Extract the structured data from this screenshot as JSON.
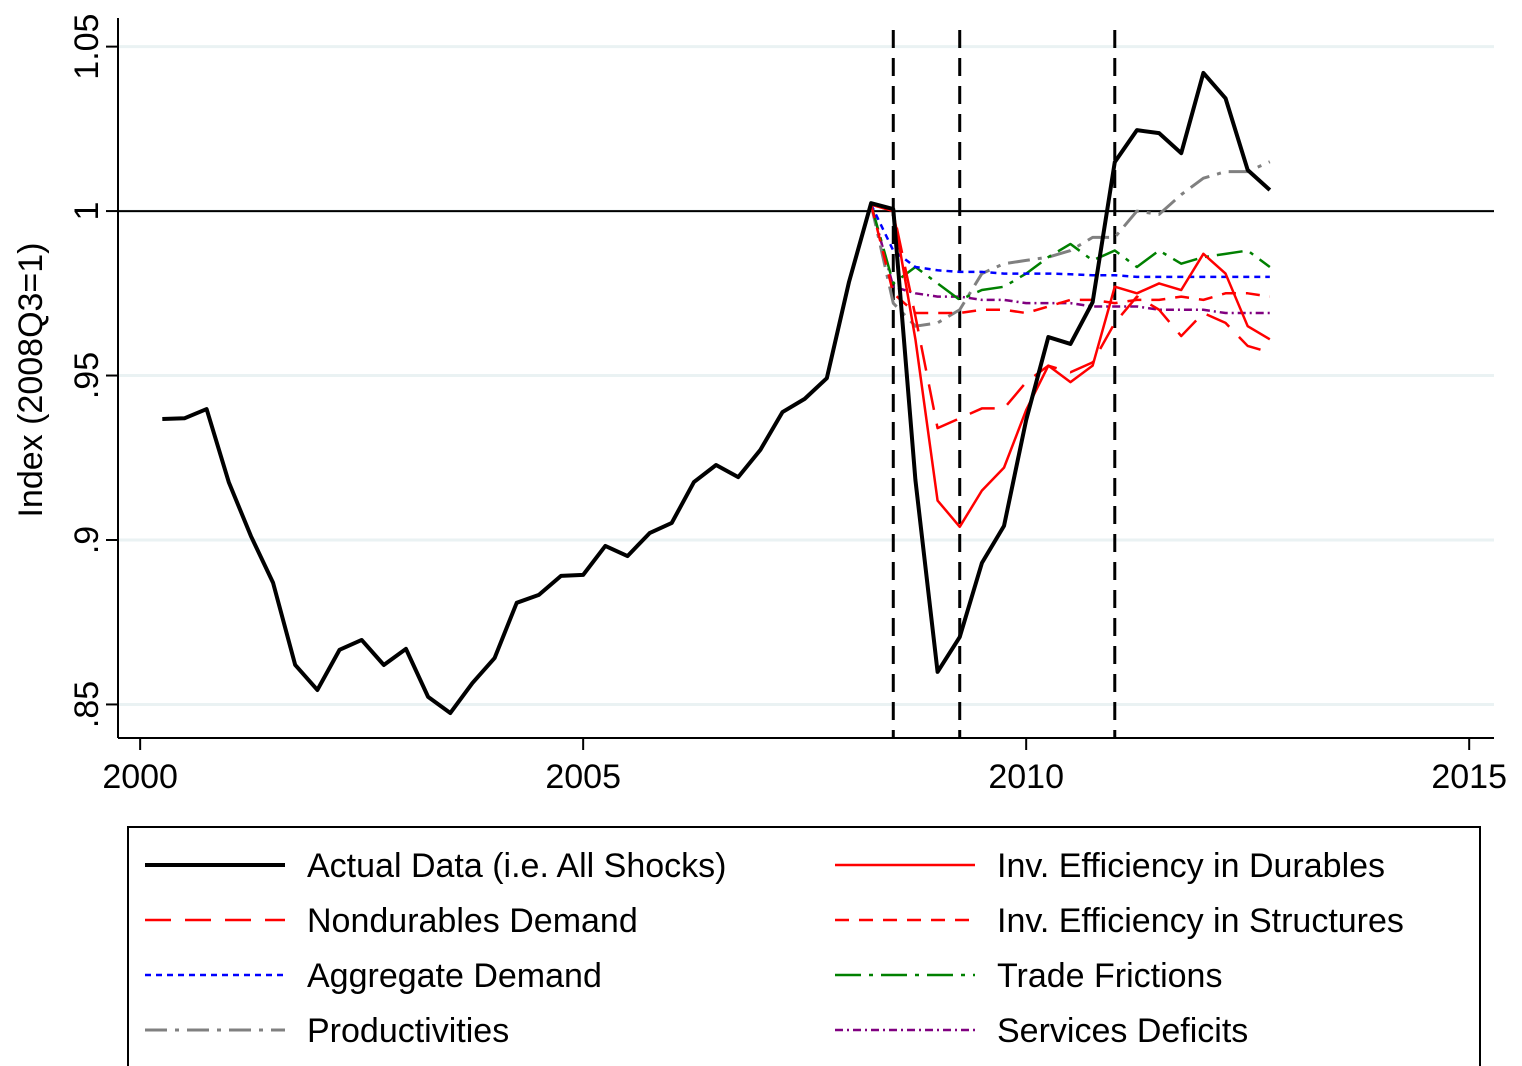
{
  "chart_data": {
    "type": "line",
    "ylabel": "Index (2008Q3=1)",
    "x": [
      2000.25,
      2000.5,
      2000.75,
      2001,
      2001.25,
      2001.5,
      2001.75,
      2002,
      2002.25,
      2002.5,
      2002.75,
      2003,
      2003.25,
      2003.5,
      2003.75,
      2004,
      2004.25,
      2004.5,
      2004.75,
      2005,
      2005.25,
      2005.5,
      2005.75,
      2006,
      2006.25,
      2006.5,
      2006.75,
      2007,
      2007.25,
      2007.5,
      2007.75,
      2008,
      2008.25,
      2008.5,
      2008.75,
      2009,
      2009.25,
      2009.5,
      2009.75,
      2010,
      2010.25,
      2010.5,
      2010.75,
      2011,
      2011.25,
      2011.5,
      2011.75,
      2012,
      2012.25,
      2012.5,
      2012.75
    ],
    "series": [
      {
        "name": "Actual Data (i.e. All Shocks)",
        "color": "#000000",
        "dash": "none",
        "width": 4,
        "values": [
          0.9368,
          0.937,
          0.9398,
          0.9176,
          0.9012,
          0.887,
          0.862,
          0.8544,
          0.8666,
          0.8696,
          0.862,
          0.8669,
          0.8523,
          0.8474,
          0.8565,
          0.8641,
          0.8809,
          0.8833,
          0.8891,
          0.8894,
          0.8982,
          0.8951,
          0.9021,
          0.9052,
          0.9176,
          0.9228,
          0.9191,
          0.9274,
          0.9389,
          0.9429,
          0.9492,
          0.9784,
          1.0024,
          1.0006,
          0.9182,
          0.8599,
          0.8705,
          0.893,
          0.9043,
          0.9365,
          0.9617,
          0.9596,
          0.9723,
          1.0149,
          1.0246,
          1.0237,
          1.0176,
          1.042,
          1.0343,
          1.0125,
          1.0064
        ]
      },
      {
        "name": "Inv. Efficiency in Durables",
        "color": "#ff0000",
        "dash": "none",
        "width": 2.5,
        "values": [
          null,
          null,
          null,
          null,
          null,
          null,
          null,
          null,
          null,
          null,
          null,
          null,
          null,
          null,
          null,
          null,
          null,
          null,
          null,
          null,
          null,
          null,
          null,
          null,
          null,
          null,
          null,
          null,
          null,
          null,
          null,
          null,
          1.002,
          1.0,
          0.961,
          0.912,
          0.904,
          0.915,
          0.922,
          0.9395,
          0.953,
          0.948,
          0.953,
          0.977,
          0.975,
          0.978,
          0.976,
          0.987,
          0.981,
          0.965,
          0.961
        ]
      },
      {
        "name": "Nondurables Demand",
        "color": "#ff0000",
        "dash": "26 14",
        "width": 2.5,
        "values": [
          null,
          null,
          null,
          null,
          null,
          null,
          null,
          null,
          null,
          null,
          null,
          null,
          null,
          null,
          null,
          null,
          null,
          null,
          null,
          null,
          null,
          null,
          null,
          null,
          null,
          null,
          null,
          null,
          null,
          null,
          null,
          null,
          1.002,
          1.0,
          0.968,
          0.934,
          0.937,
          0.94,
          0.94,
          0.948,
          0.953,
          0.951,
          0.954,
          0.966,
          0.974,
          0.97,
          0.962,
          0.969,
          0.966,
          0.959,
          0.957
        ]
      },
      {
        "name": "Inv. Efficiency in Structures",
        "color": "#ff0000",
        "dash": "14 10",
        "width": 2.5,
        "values": [
          null,
          null,
          null,
          null,
          null,
          null,
          null,
          null,
          null,
          null,
          null,
          null,
          null,
          null,
          null,
          null,
          null,
          null,
          null,
          null,
          null,
          null,
          null,
          null,
          null,
          null,
          null,
          null,
          null,
          null,
          null,
          null,
          1.002,
          0.975,
          0.969,
          0.969,
          0.969,
          0.97,
          0.97,
          0.969,
          0.971,
          0.973,
          0.973,
          0.972,
          0.973,
          0.973,
          0.974,
          0.973,
          0.975,
          0.975,
          0.974
        ]
      },
      {
        "name": "Aggregate Demand",
        "color": "#0000ff",
        "dash": "6 5",
        "width": 2.5,
        "values": [
          null,
          null,
          null,
          null,
          null,
          null,
          null,
          null,
          null,
          null,
          null,
          null,
          null,
          null,
          null,
          null,
          null,
          null,
          null,
          null,
          null,
          null,
          null,
          null,
          null,
          null,
          null,
          null,
          null,
          null,
          null,
          null,
          1.002,
          0.988,
          0.983,
          0.982,
          0.9815,
          0.9815,
          0.981,
          0.981,
          0.981,
          0.9808,
          0.9805,
          0.9805,
          0.98,
          0.98,
          0.98,
          0.98,
          0.98,
          0.98,
          0.98
        ]
      },
      {
        "name": "Trade Frictions",
        "color": "#008000",
        "dash": "26 8 4 8",
        "width": 2.5,
        "values": [
          null,
          null,
          null,
          null,
          null,
          null,
          null,
          null,
          null,
          null,
          null,
          null,
          null,
          null,
          null,
          null,
          null,
          null,
          null,
          null,
          null,
          null,
          null,
          null,
          null,
          null,
          null,
          null,
          null,
          null,
          null,
          null,
          1.002,
          0.978,
          0.983,
          0.978,
          0.973,
          0.976,
          0.977,
          0.981,
          0.986,
          0.99,
          0.985,
          0.988,
          0.983,
          0.988,
          0.984,
          0.986,
          0.987,
          0.988,
          0.983
        ]
      },
      {
        "name": "Productivities",
        "color": "#808080",
        "dash": "22 8 4 8",
        "width": 3,
        "values": [
          null,
          null,
          null,
          null,
          null,
          null,
          null,
          null,
          null,
          null,
          null,
          null,
          null,
          null,
          null,
          null,
          null,
          null,
          null,
          null,
          null,
          null,
          null,
          null,
          null,
          null,
          null,
          null,
          null,
          null,
          null,
          null,
          1.002,
          0.972,
          0.965,
          0.966,
          0.97,
          0.981,
          0.984,
          0.985,
          0.986,
          0.988,
          0.992,
          0.992,
          1.0,
          0.999,
          1.005,
          1.01,
          1.012,
          1.012,
          1.015
        ]
      },
      {
        "name": "Services Deficits",
        "color": "#800080",
        "dash": "8 4 2 4",
        "width": 2.5,
        "values": [
          null,
          null,
          null,
          null,
          null,
          null,
          null,
          null,
          null,
          null,
          null,
          null,
          null,
          null,
          null,
          null,
          null,
          null,
          null,
          null,
          null,
          null,
          null,
          null,
          null,
          null,
          null,
          null,
          null,
          null,
          null,
          null,
          1.002,
          0.977,
          0.975,
          0.974,
          0.974,
          0.973,
          0.973,
          0.972,
          0.972,
          0.972,
          0.971,
          0.971,
          0.971,
          0.97,
          0.97,
          0.97,
          0.969,
          0.969,
          0.969
        ]
      }
    ],
    "xlim": [
      1999.75,
      2015.28
    ],
    "xticks": [
      2000,
      2005,
      2010,
      2015
    ],
    "ylim": [
      0.8398,
      1.0587
    ],
    "yticks": [
      {
        "value": 0.85,
        "label": ".85"
      },
      {
        "value": 0.9,
        "label": ".9"
      },
      {
        "value": 0.95,
        "label": ".95"
      },
      1,
      1.05
    ],
    "grid": true,
    "hline": 1,
    "vlines": [
      2008.5,
      2009.25,
      2011
    ]
  }
}
